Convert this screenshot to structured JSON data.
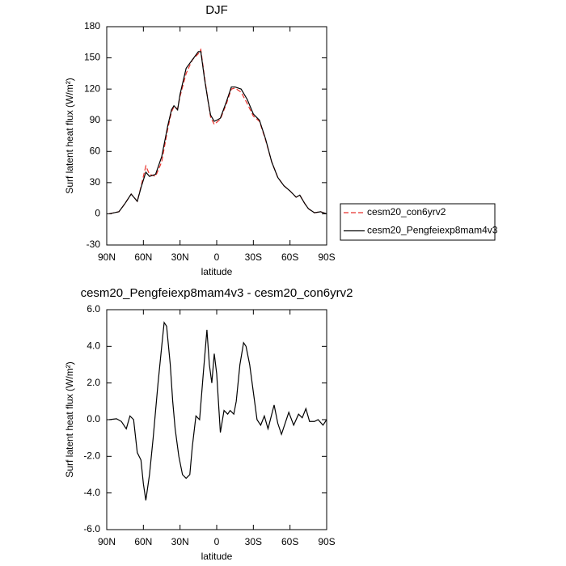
{
  "chart_data": [
    {
      "type": "line",
      "title": "DJF",
      "xlabel": "latitude",
      "ylabel": "Surf latent heat flux (W/m²)",
      "x": [
        88,
        80,
        75,
        70,
        65,
        62,
        58,
        55,
        50,
        45,
        40,
        37,
        35,
        32,
        30,
        25,
        20,
        15,
        13,
        10,
        7,
        5,
        2,
        0,
        -3,
        -8,
        -12,
        -15,
        -20,
        -25,
        -30,
        -35,
        -40,
        -45,
        -50,
        -55,
        -60,
        -65,
        -68,
        -72,
        -75,
        -80,
        -85,
        -90
      ],
      "series": [
        {
          "name": "cesm20_con6yrv2",
          "color": "#e8322c",
          "line_style": "dashed",
          "values": [
            0,
            2,
            10,
            19,
            12,
            26,
            46,
            38,
            36,
            50,
            82,
            98,
            103,
            101,
            113,
            135,
            148,
            154,
            158,
            132,
            108,
            93,
            86,
            88,
            91,
            106,
            120,
            121,
            117,
            106,
            94,
            89,
            71,
            50,
            35,
            27,
            22,
            16,
            18,
            10,
            5,
            1,
            2,
            0
          ]
        },
        {
          "name": "cesm20_Pengfeiexp8mam4v3",
          "color": "#000000",
          "line_style": "solid",
          "values": [
            0,
            2,
            10,
            19,
            12,
            25,
            40,
            36,
            38,
            55,
            85,
            100,
            104,
            100,
            115,
            140,
            148,
            156,
            156,
            130,
            108,
            95,
            89,
            90,
            92,
            108,
            122,
            122,
            120,
            110,
            96,
            90,
            72,
            50,
            35,
            27,
            22,
            16,
            18,
            10,
            5,
            1,
            2,
            0
          ]
        }
      ],
      "xlim": [
        90,
        -90
      ],
      "xticks": [
        {
          "value": 90,
          "label": "90N"
        },
        {
          "value": 60,
          "label": "60N"
        },
        {
          "value": 30,
          "label": "30N"
        },
        0,
        {
          "value": -30,
          "label": "30S"
        },
        {
          "value": -60,
          "label": "60S"
        },
        {
          "value": -90,
          "label": "90S"
        }
      ],
      "ylim": [
        -30,
        180
      ],
      "yticks": [
        -30,
        0,
        30,
        60,
        90,
        120,
        150,
        180
      ],
      "legend": "right"
    },
    {
      "type": "line",
      "title": "cesm20_Pengfeiexp8mam4v3 - cesm20_con6yrv2",
      "xlabel": "latitude",
      "ylabel": "Surf latent heat flux (W/m²)",
      "x": [
        88,
        82,
        78,
        74,
        71,
        68,
        65,
        62,
        60,
        58,
        55,
        52,
        48,
        45,
        43,
        41,
        38,
        36,
        34,
        31,
        28,
        25,
        22,
        20,
        17,
        14,
        11,
        8,
        6,
        4,
        2,
        0,
        -3,
        -6,
        -9,
        -11,
        -14,
        -16,
        -19,
        -22,
        -24,
        -27,
        -30,
        -33,
        -36,
        -39,
        -42,
        -47,
        -50,
        -53,
        -56,
        -59,
        -63,
        -67,
        -70,
        -73,
        -76,
        -80,
        -83,
        -87,
        -90
      ],
      "series": [
        {
          "color": "#000000",
          "line_style": "solid",
          "values": [
            0,
            0.05,
            -0.1,
            -0.5,
            0.2,
            0,
            -1.8,
            -2.2,
            -3.5,
            -4.4,
            -3.0,
            -1.0,
            2.0,
            4.0,
            5.3,
            5.1,
            3.0,
            1.0,
            -0.5,
            -2.0,
            -3.0,
            -3.2,
            -3.0,
            -1.5,
            0.2,
            0.0,
            2.5,
            4.9,
            3.0,
            2.0,
            3.6,
            2.5,
            -0.7,
            0.5,
            0.3,
            0.5,
            0.3,
            1.0,
            3.0,
            4.2,
            4.0,
            3.0,
            1.5,
            0.0,
            -0.3,
            0.2,
            -0.5,
            0.8,
            -0.2,
            -0.8,
            -0.2,
            0.4,
            -0.3,
            0.3,
            0.1,
            0.6,
            -0.1,
            -0.1,
            0.0,
            -0.3,
            0.0
          ]
        }
      ],
      "xlim": [
        90,
        -90
      ],
      "xticks": [
        {
          "value": 90,
          "label": "90N"
        },
        {
          "value": 60,
          "label": "60N"
        },
        {
          "value": 30,
          "label": "30N"
        },
        0,
        {
          "value": -30,
          "label": "30S"
        },
        {
          "value": -60,
          "label": "60S"
        },
        {
          "value": -90,
          "label": "90S"
        }
      ],
      "ylim": [
        -6,
        6
      ],
      "yticks": [
        {
          "value": -6,
          "label": "-6.0"
        },
        {
          "value": -4,
          "label": "-4.0"
        },
        {
          "value": -2,
          "label": "-2.0"
        },
        {
          "value": 0,
          "label": "0.0"
        },
        {
          "value": 2,
          "label": "2.0"
        },
        {
          "value": 4,
          "label": "4.0"
        },
        {
          "value": 6,
          "label": "6.0"
        }
      ]
    }
  ]
}
